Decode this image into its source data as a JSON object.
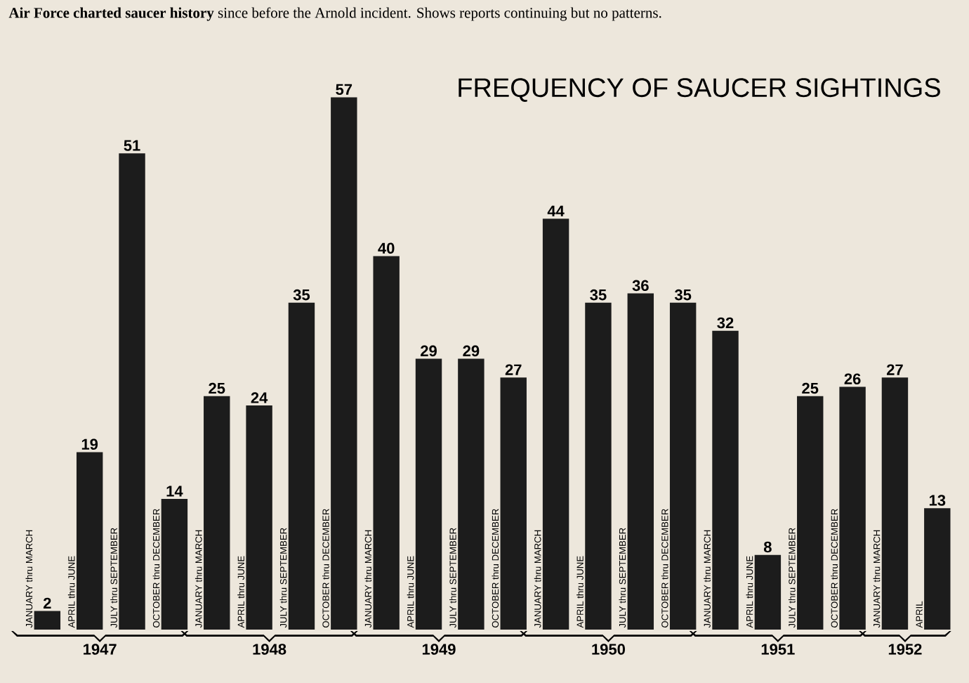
{
  "chart_data": {
    "type": "bar",
    "title": "FREQUENCY OF SAUCER SIGHTINGS",
    "categories": [
      "JANUARY thru MARCH",
      "APRIL thru JUNE",
      "JULY thru SEPTEMBER",
      "OCTOBER thru DECEMBER",
      "JANUARY thru MARCH",
      "APRIL thru JUNE",
      "JULY thru SEPTEMBER",
      "OCTOBER thru DECEMBER",
      "JANUARY thru MARCH",
      "APRIL thru JUNE",
      "JULY thru SEPTEMBER",
      "OCTOBER thru DECEMBER",
      "JANUARY thru MARCH",
      "APRIL thru JUNE",
      "JULY thru SEPTEMBER",
      "OCTOBER thru DECEMBER",
      "JANUARY thru MARCH",
      "APRIL thru JUNE",
      "JULY thru SEPTEMBER",
      "OCTOBER thru DECEMBER",
      "JANUARY thru MARCH",
      "APRIL"
    ],
    "values": [
      2,
      19,
      51,
      14,
      25,
      24,
      35,
      57,
      40,
      29,
      29,
      27,
      44,
      35,
      36,
      35,
      32,
      8,
      25,
      26,
      27,
      13
    ],
    "color": "#1c1c1c",
    "data_labels": true,
    "annotations": [
      "**Air Force charted saucer history** since before the Arnold incident. Shows reports continuing but no patterns.",
      "1947",
      "1948",
      "1949",
      "1950",
      "1951",
      "1952"
    ]
  }
}
